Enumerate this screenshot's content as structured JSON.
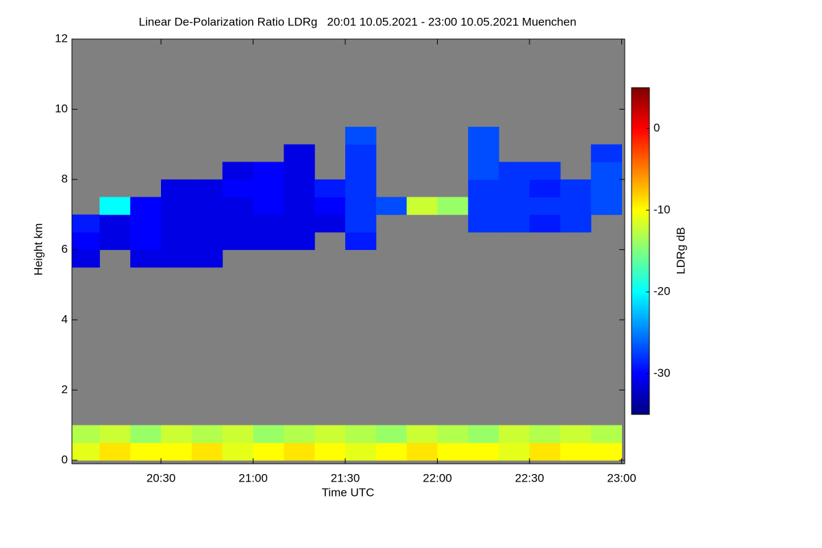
{
  "chart_data": {
    "type": "heatmap",
    "title": "Linear De-Polarization Ratio LDRg   20:01 10.05.2021 - 23:00 10.05.2021 Muenchen",
    "x_label": "Time UTC",
    "y_label": "Height km",
    "colorbar_label": "LDRg dB",
    "xlim": [
      1201,
      1381
    ],
    "xticks": [
      {
        "value": 1230,
        "label": "20:30"
      },
      {
        "value": 1260,
        "label": "21:00"
      },
      {
        "value": 1290,
        "label": "21:30"
      },
      {
        "value": 1320,
        "label": "22:00"
      },
      {
        "value": 1350,
        "label": "22:30"
      },
      {
        "value": 1380,
        "label": "23:00"
      }
    ],
    "ylim": [
      -0.1,
      12
    ],
    "yticks": [
      0,
      2,
      4,
      6,
      8,
      10,
      12
    ],
    "zlim": [
      -35,
      5
    ],
    "zticks": [
      0,
      -10,
      -20,
      -30
    ],
    "colorscale": [
      "#00007f",
      "#0000ff",
      "#007fff",
      "#00ffff",
      "#7fff7f",
      "#ffff00",
      "#ff7f00",
      "#ff0000",
      "#7f0000"
    ],
    "missing_color": "#808080",
    "xbins": [
      1200,
      1210,
      1220,
      1230,
      1240,
      1250,
      1260,
      1270,
      1280,
      1290,
      1300,
      1310,
      1320,
      1330,
      1340,
      1350,
      1360,
      1370,
      1380
    ],
    "ybins": [
      0,
      0.5,
      1,
      1.5,
      2,
      2.5,
      3,
      3.5,
      4,
      4.5,
      5,
      5.5,
      6,
      6.5,
      7,
      7.5,
      8,
      8.5,
      9,
      9.5,
      10,
      10.5,
      11,
      11.5,
      12
    ],
    "z": [
      [
        -11,
        -9,
        -10,
        -10,
        -9,
        -11,
        -10,
        -9,
        -10,
        -11,
        -10,
        -9,
        -10,
        -10,
        -11,
        -9,
        -10,
        -10
      ],
      [
        -13,
        -12,
        -14,
        -12,
        -13,
        -12,
        -14,
        -13,
        -12,
        -13,
        -14,
        -12,
        -13,
        -14,
        -12,
        -13,
        -12,
        -13
      ],
      [
        null,
        null,
        null,
        null,
        null,
        null,
        null,
        null,
        null,
        null,
        null,
        null,
        null,
        null,
        null,
        null,
        null,
        null
      ],
      [
        null,
        null,
        null,
        null,
        null,
        null,
        null,
        null,
        null,
        null,
        null,
        null,
        null,
        null,
        null,
        null,
        null,
        null
      ],
      [
        null,
        null,
        null,
        null,
        null,
        null,
        null,
        null,
        null,
        null,
        null,
        null,
        null,
        null,
        null,
        null,
        null,
        null
      ],
      [
        null,
        null,
        null,
        null,
        null,
        null,
        null,
        null,
        null,
        null,
        null,
        null,
        null,
        null,
        null,
        null,
        null,
        null
      ],
      [
        null,
        null,
        null,
        null,
        null,
        null,
        null,
        null,
        null,
        null,
        null,
        null,
        null,
        null,
        null,
        null,
        null,
        null
      ],
      [
        null,
        null,
        null,
        null,
        null,
        null,
        null,
        null,
        null,
        null,
        null,
        null,
        null,
        null,
        null,
        null,
        null,
        null
      ],
      [
        null,
        null,
        null,
        null,
        null,
        null,
        null,
        null,
        null,
        null,
        null,
        null,
        null,
        null,
        null,
        null,
        null,
        null
      ],
      [
        null,
        null,
        null,
        null,
        null,
        null,
        null,
        null,
        null,
        null,
        null,
        null,
        null,
        null,
        null,
        null,
        null,
        null
      ],
      [
        null,
        null,
        null,
        null,
        null,
        null,
        null,
        null,
        null,
        null,
        null,
        null,
        null,
        null,
        null,
        null,
        null,
        null
      ],
      [
        -31,
        null,
        -31,
        -31,
        -31,
        null,
        null,
        null,
        null,
        null,
        null,
        null,
        null,
        null,
        null,
        null,
        null,
        null
      ],
      [
        -30,
        -31,
        -30,
        -31,
        -31,
        -31,
        -31,
        -31,
        null,
        -29,
        null,
        null,
        null,
        null,
        null,
        null,
        null,
        null
      ],
      [
        -29,
        -31,
        -30,
        -31,
        -31,
        -31,
        -31,
        -31,
        -31,
        -28,
        null,
        null,
        null,
        -28,
        -28,
        -29,
        -28,
        null
      ],
      [
        null,
        -20,
        -30,
        -31,
        -31,
        -31,
        -30,
        -31,
        -30,
        -28,
        -27,
        -12,
        -14,
        -28,
        -28,
        -28,
        -28,
        -27
      ],
      [
        null,
        null,
        null,
        -31,
        -31,
        -30,
        -30,
        -31,
        -29,
        -28,
        null,
        null,
        null,
        -28,
        -28,
        -29,
        -28,
        -27
      ],
      [
        null,
        null,
        null,
        null,
        null,
        -31,
        -30,
        -31,
        null,
        -28,
        null,
        null,
        null,
        -27,
        -28,
        -28,
        null,
        -27
      ],
      [
        null,
        null,
        null,
        null,
        null,
        null,
        null,
        -31,
        null,
        -28,
        null,
        null,
        null,
        -27,
        null,
        null,
        null,
        -28
      ],
      [
        null,
        null,
        null,
        null,
        null,
        null,
        null,
        null,
        null,
        -27,
        null,
        null,
        null,
        -27,
        null,
        null,
        null,
        null
      ],
      [
        null,
        null,
        null,
        null,
        null,
        null,
        null,
        null,
        null,
        null,
        null,
        null,
        null,
        null,
        null,
        null,
        null,
        null
      ],
      [
        null,
        null,
        null,
        null,
        null,
        null,
        null,
        null,
        null,
        null,
        null,
        null,
        null,
        null,
        null,
        null,
        null,
        null
      ],
      [
        null,
        null,
        null,
        null,
        null,
        null,
        null,
        null,
        null,
        null,
        null,
        null,
        null,
        null,
        null,
        null,
        null,
        null
      ],
      [
        null,
        null,
        null,
        null,
        null,
        null,
        null,
        null,
        null,
        null,
        null,
        null,
        null,
        null,
        null,
        null,
        null,
        null
      ],
      [
        null,
        null,
        null,
        null,
        null,
        null,
        null,
        null,
        null,
        null,
        null,
        null,
        null,
        null,
        null,
        null,
        null,
        null
      ]
    ]
  }
}
